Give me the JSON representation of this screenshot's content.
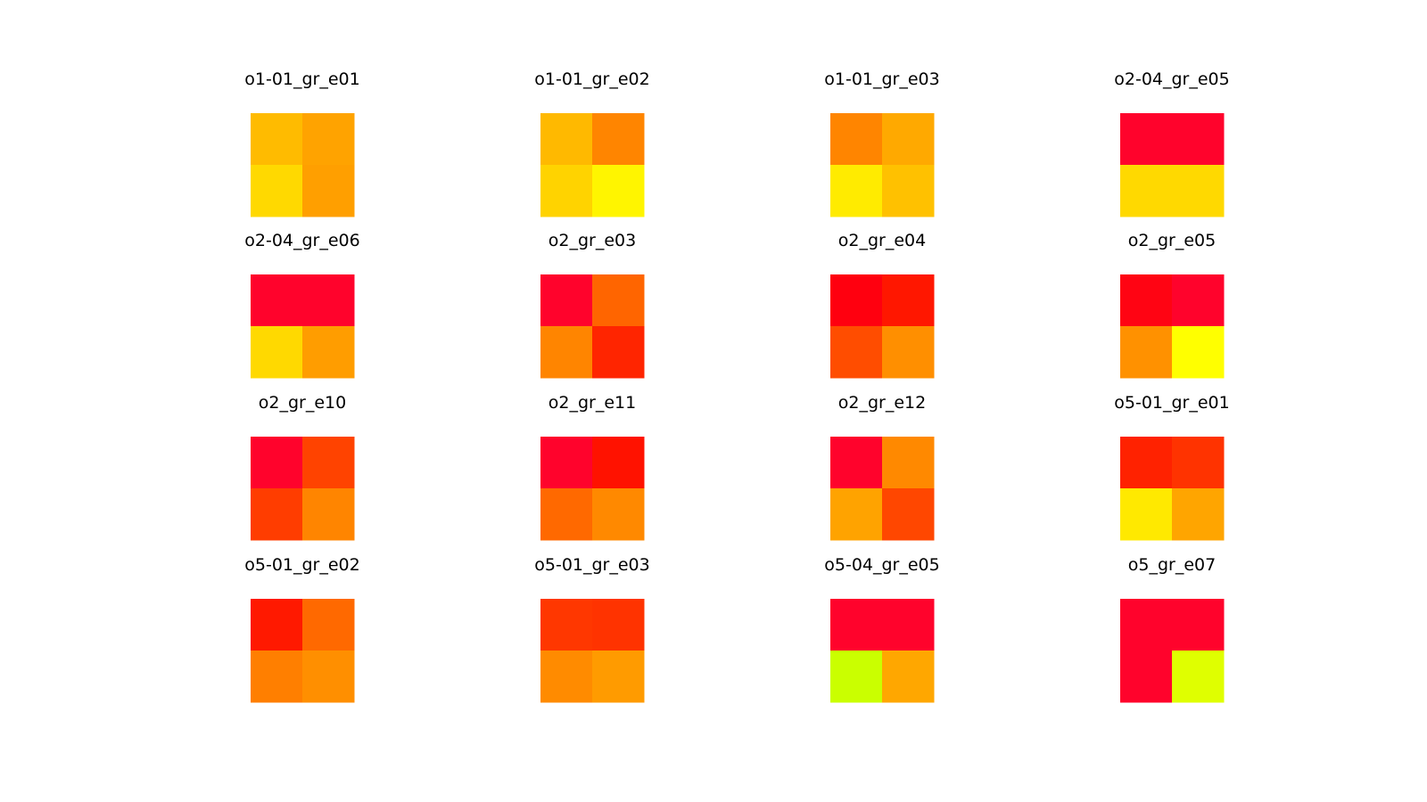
{
  "chart_data": {
    "type": "heatmap",
    "layout": {
      "rows": 4,
      "cols": 4
    },
    "grid": false,
    "axes": "off",
    "colormap": "red-to-yellow",
    "panels": [
      {
        "title": "o1-01_gr_e01",
        "cells": [
          [
            "#ffbb00",
            "#ffa300"
          ],
          [
            "#ffd900",
            "#ff9f00"
          ]
        ]
      },
      {
        "title": "o1-01_gr_e02",
        "cells": [
          [
            "#ffb900",
            "#ff8500"
          ],
          [
            "#ffd300",
            "#fff500"
          ]
        ]
      },
      {
        "title": "o1-01_gr_e03",
        "cells": [
          [
            "#ff8500",
            "#ffa900"
          ],
          [
            "#ffeb00",
            "#ffc100"
          ]
        ]
      },
      {
        "title": "o2-04_gr_e05",
        "cells": [
          [
            "#ff032c",
            "#ff032c"
          ],
          [
            "#ffd900",
            "#ffd900"
          ]
        ]
      },
      {
        "title": "o2-04_gr_e06",
        "cells": [
          [
            "#ff032c",
            "#ff032c"
          ],
          [
            "#ffd900",
            "#ff9d00"
          ]
        ]
      },
      {
        "title": "o2_gr_e03",
        "cells": [
          [
            "#ff032c",
            "#ff6500"
          ],
          [
            "#ff8500",
            "#ff2500"
          ]
        ]
      },
      {
        "title": "o2_gr_e04",
        "cells": [
          [
            "#ff000f",
            "#ff1700"
          ],
          [
            "#ff4d00",
            "#ff8f00"
          ]
        ]
      },
      {
        "title": "o2_gr_e05",
        "cells": [
          [
            "#ff0413",
            "#ff032c"
          ],
          [
            "#ff9100",
            "#ffff00"
          ]
        ]
      },
      {
        "title": "o2_gr_e10",
        "cells": [
          [
            "#ff032c",
            "#ff4300"
          ],
          [
            "#ff3d00",
            "#ff8500"
          ]
        ]
      },
      {
        "title": "o2_gr_e11",
        "cells": [
          [
            "#ff032c",
            "#ff1200"
          ],
          [
            "#ff6900",
            "#ff8900"
          ]
        ]
      },
      {
        "title": "o2_gr_e12",
        "cells": [
          [
            "#ff032c",
            "#ff8900"
          ],
          [
            "#ffa300",
            "#ff4700"
          ]
        ]
      },
      {
        "title": "o5-01_gr_e01",
        "cells": [
          [
            "#ff2200",
            "#ff3300"
          ],
          [
            "#ffe900",
            "#ffa500"
          ]
        ]
      },
      {
        "title": "o5-01_gr_e02",
        "cells": [
          [
            "#ff1900",
            "#ff6900"
          ],
          [
            "#ff7f00",
            "#ff8f00"
          ]
        ]
      },
      {
        "title": "o5-01_gr_e03",
        "cells": [
          [
            "#ff3700",
            "#ff3300"
          ],
          [
            "#ff8b00",
            "#ff9b00"
          ]
        ]
      },
      {
        "title": "o5-04_gr_e05",
        "cells": [
          [
            "#ff032c",
            "#ff032c"
          ],
          [
            "#caff00",
            "#ffa700"
          ]
        ]
      },
      {
        "title": "o5_gr_e07",
        "cells": [
          [
            "#ff032c",
            "#ff032c"
          ],
          [
            "#ff032c",
            "#dfff00"
          ]
        ]
      }
    ]
  }
}
